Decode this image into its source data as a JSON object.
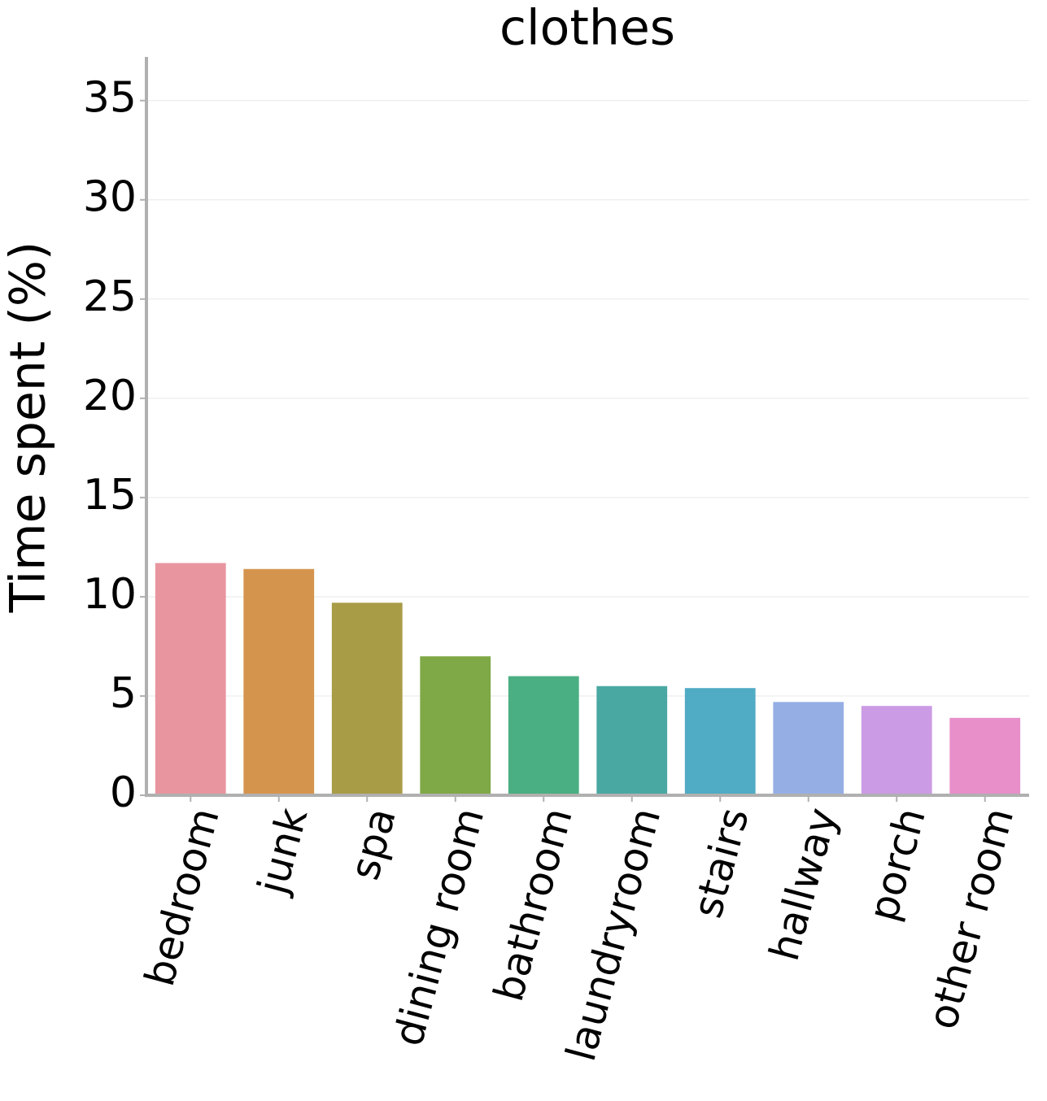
{
  "chart_data": {
    "type": "bar",
    "title": "clothes",
    "y_label": "Time spent (%)",
    "categories": [
      "bedroom",
      "junk",
      "spa",
      "dining room",
      "bathroom",
      "laundryroom",
      "stairs",
      "hallway",
      "porch",
      "other room"
    ],
    "values": [
      11.7,
      11.4,
      9.7,
      7.0,
      6.0,
      5.5,
      5.4,
      4.7,
      4.5,
      3.9
    ],
    "colors": [
      "#e8959f",
      "#d5944e",
      "#a99c47",
      "#7fa846",
      "#4aaf82",
      "#4aa8a3",
      "#50abc5",
      "#95afe5",
      "#cc9be5",
      "#e88fca"
    ],
    "ylim": [
      0,
      37.2
    ],
    "yticks": [
      0,
      5,
      10,
      15,
      20,
      25,
      30,
      35
    ],
    "grid": true
  }
}
